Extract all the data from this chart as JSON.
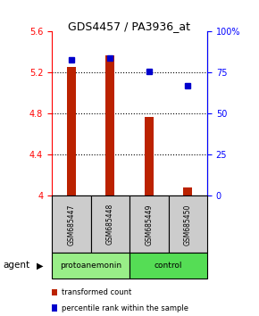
{
  "title": "GDS4457 / PA3936_at",
  "samples": [
    "GSM685447",
    "GSM685448",
    "GSM685449",
    "GSM685450"
  ],
  "bar_values": [
    5.26,
    5.37,
    4.77,
    4.08
  ],
  "percentile_values": [
    83,
    84,
    76,
    67
  ],
  "ylim_left": [
    4.0,
    5.6
  ],
  "ylim_right": [
    0,
    100
  ],
  "yticks_left": [
    4.0,
    4.4,
    4.8,
    5.2,
    5.6
  ],
  "yticks_right": [
    0,
    25,
    50,
    75,
    100
  ],
  "ytick_labels_right": [
    "0",
    "25",
    "50",
    "75",
    "100%"
  ],
  "bar_color": "#BB2200",
  "dot_color": "#0000CC",
  "groups": [
    {
      "label": "protoanemonin",
      "color": "#99EE88",
      "cols": [
        0,
        1
      ]
    },
    {
      "label": "control",
      "color": "#55DD55",
      "cols": [
        2,
        3
      ]
    }
  ],
  "group_row_label": "agent",
  "sample_box_color": "#CCCCCC",
  "bar_width": 0.22
}
